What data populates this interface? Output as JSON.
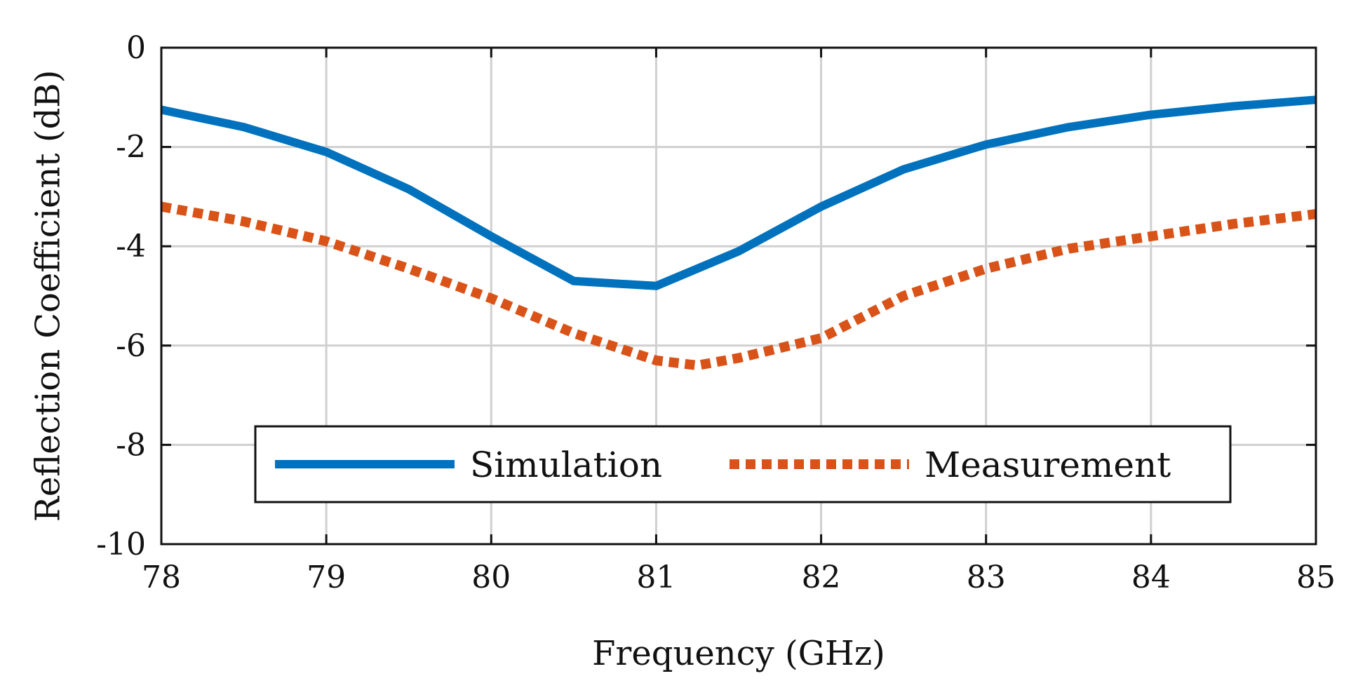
{
  "chart_data": {
    "type": "line",
    "title": "",
    "xlabel": "Frequency (GHz)",
    "ylabel": "Reflection Coefficient (dB)",
    "xlim": [
      78,
      85
    ],
    "ylim": [
      -10,
      0
    ],
    "xticks": [
      78,
      79,
      80,
      81,
      82,
      83,
      84,
      85
    ],
    "yticks": [
      0,
      -2,
      -4,
      -6,
      -8,
      -10
    ],
    "grid": true,
    "legend_position": "bottom-center",
    "series": [
      {
        "name": "Simulation",
        "style": "solid",
        "color": "#0072BD",
        "x": [
          78,
          78.5,
          79,
          79.5,
          80,
          80.5,
          81,
          81.5,
          82,
          82.5,
          83,
          83.5,
          84,
          84.5,
          85
        ],
        "y": [
          -1.25,
          -1.6,
          -2.1,
          -2.85,
          -3.8,
          -4.7,
          -4.8,
          -4.1,
          -3.2,
          -2.45,
          -1.95,
          -1.6,
          -1.35,
          -1.18,
          -1.05
        ]
      },
      {
        "name": "Measurement",
        "style": "dotted",
        "color": "#D95319",
        "x": [
          78,
          78.5,
          79,
          79.5,
          80,
          80.5,
          81,
          81.25,
          81.5,
          82,
          82.5,
          83,
          83.5,
          84,
          84.5,
          85
        ],
        "y": [
          -3.2,
          -3.5,
          -3.9,
          -4.45,
          -5.05,
          -5.75,
          -6.3,
          -6.4,
          -6.25,
          -5.85,
          -5.0,
          -4.45,
          -4.05,
          -3.8,
          -3.55,
          -3.35
        ]
      }
    ]
  }
}
